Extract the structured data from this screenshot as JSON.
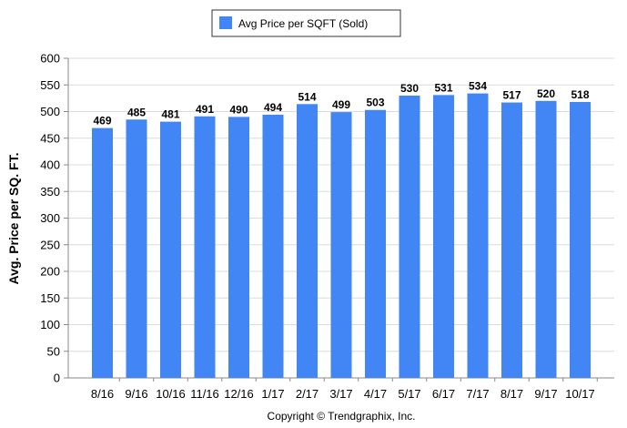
{
  "colors": {
    "bar": "#4285f4",
    "grid": "#dcdcdc",
    "axis": "#888888",
    "legend_border": "#333333"
  },
  "legend": {
    "label": "Avg Price per SQFT (Sold)",
    "placement": "top-center"
  },
  "footer": {
    "text": "Copyright © Trendgraphix, Inc."
  },
  "chart_data": {
    "type": "bar",
    "title": "",
    "xlabel": "",
    "ylabel": "Avg. Price per SQ. FT.",
    "ylim": [
      0,
      600
    ],
    "yticks": [
      "0",
      "50",
      "100",
      "150",
      "200",
      "250",
      "300",
      "350",
      "400",
      "450",
      "500",
      "550",
      "600"
    ],
    "grid": true,
    "categories": [
      "8/16",
      "9/16",
      "10/16",
      "11/16",
      "12/16",
      "1/17",
      "2/17",
      "3/17",
      "4/17",
      "5/17",
      "6/17",
      "7/17",
      "8/17",
      "9/17",
      "10/17"
    ],
    "series": [
      {
        "name": "Avg Price per SQFT (Sold)",
        "values": [
          469,
          485,
          481,
          491,
          490,
          494,
          514,
          499,
          503,
          530,
          531,
          534,
          517,
          520,
          518
        ]
      }
    ]
  }
}
